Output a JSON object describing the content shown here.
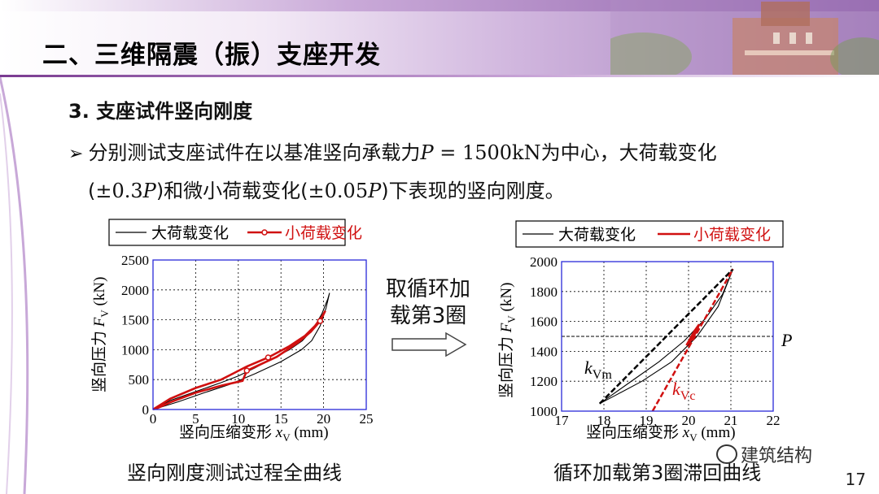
{
  "slide": {
    "title": "二、三维隔震（振）支座开发",
    "section_title": "3. 支座试件竖向刚度",
    "bullet_prefix": "分别测试支座试件在以基准竖向承载力",
    "bullet_math_P": "P",
    "bullet_math_eq": " = 1500kN",
    "bullet_mid": "为中心，大荷载变化",
    "line2_open": "(",
    "line2_pm1": "±0.3",
    "line2_P1": "P",
    "line2_mid": ")和微小荷载变化(",
    "line2_pm2": "±0.05",
    "line2_P2": "P",
    "line2_end": ")下表现的竖向刚度。",
    "middle_label_line1": "取循环加",
    "middle_label_line2": "载第3圈",
    "caption_left": "竖向刚度测试过程全曲线",
    "caption_right": "循环加载第3圈滞回曲线",
    "watermark": "建筑结构",
    "page_number": "17"
  },
  "colors": {
    "accent": "#7a3b91",
    "large_load": "#000000",
    "small_load": "#d01010",
    "plot_frame": "#2a2ad8"
  },
  "chart_data": [
    {
      "type": "line",
      "xlabel_main": "竖向压缩变形 ",
      "xlabel_var": "x",
      "xlabel_sub": "V",
      "xlabel_unit": " (mm)",
      "ylabel_main": "竖向压力 ",
      "ylabel_var": "F",
      "ylabel_sub": "V",
      "ylabel_unit": " (kN)",
      "xlim": [
        0,
        25
      ],
      "ylim": [
        0,
        2500
      ],
      "xticks": [
        "0",
        "5",
        "10",
        "15",
        "20",
        "25"
      ],
      "yticks": [
        "0",
        "500",
        "1000",
        "1500",
        "2000",
        "2500"
      ],
      "grid": true,
      "legend_position": "top",
      "series": [
        {
          "name": "大荷载变化",
          "color": "#000000",
          "loading": [
            [
              0,
              0
            ],
            [
              2,
              150
            ],
            [
              5,
              300
            ],
            [
              8,
              450
            ],
            [
              10,
              560
            ],
            [
              12,
              700
            ],
            [
              14,
              850
            ],
            [
              16,
              1000
            ],
            [
              17.5,
              1150
            ],
            [
              18.8,
              1350
            ],
            [
              19.8,
              1600
            ],
            [
              20.5,
              1850
            ],
            [
              20.7,
              1950
            ]
          ],
          "unloading": [
            [
              20.7,
              1950
            ],
            [
              20.3,
              1700
            ],
            [
              19.6,
              1400
            ],
            [
              18.6,
              1150
            ],
            [
              17.4,
              1000
            ],
            [
              15,
              800
            ],
            [
              12,
              600
            ],
            [
              9,
              420
            ],
            [
              6,
              280
            ],
            [
              3,
              130
            ],
            [
              0.5,
              20
            ]
          ]
        },
        {
          "name": "小荷载变化",
          "color": "#d01010",
          "marker": "circle",
          "loading": [
            [
              0,
              0
            ],
            [
              2,
              180
            ],
            [
              5,
              360
            ],
            [
              8,
              500
            ],
            [
              9.5,
              610
            ],
            [
              11,
              720
            ],
            [
              13.5,
              870
            ],
            [
              16,
              1060
            ],
            [
              17.8,
              1230
            ],
            [
              19,
              1400
            ],
            [
              19.8,
              1550
            ],
            [
              20.2,
              1650
            ]
          ],
          "unloading": [
            [
              20.2,
              1650
            ],
            [
              19.6,
              1480
            ],
            [
              18.5,
              1300
            ],
            [
              17,
              1120
            ],
            [
              14.5,
              880
            ],
            [
              11,
              650
            ],
            [
              10.5,
              480
            ],
            [
              8,
              400
            ],
            [
              5,
              280
            ],
            [
              2,
              120
            ],
            [
              0.3,
              10
            ]
          ]
        }
      ]
    },
    {
      "type": "line",
      "xlabel_main": "竖向压缩变形 ",
      "xlabel_var": "x",
      "xlabel_sub": "V",
      "xlabel_unit": " (mm)",
      "ylabel_main": "竖向压力 ",
      "ylabel_var": "F",
      "ylabel_sub": "V",
      "ylabel_unit": " (kN)",
      "xlim": [
        17,
        22
      ],
      "ylim": [
        1000,
        2000
      ],
      "xticks": [
        "17",
        "18",
        "19",
        "20",
        "21",
        "22"
      ],
      "yticks": [
        "1000",
        "1200",
        "1400",
        "1600",
        "1800",
        "2000"
      ],
      "grid": true,
      "legend_position": "top",
      "reference_line": {
        "y": 1500,
        "label": "P"
      },
      "k_vm_label": "k",
      "k_vm_sub": "Vm",
      "k_vc_label": "k",
      "k_vc_sub": "Vc",
      "series": [
        {
          "name": "大荷载变化",
          "color": "#000000",
          "loading": [
            [
              17.9,
              1050
            ],
            [
              18.6,
              1190
            ],
            [
              19.3,
              1330
            ],
            [
              19.9,
              1470
            ],
            [
              20.4,
              1620
            ],
            [
              20.8,
              1780
            ],
            [
              21.05,
              1950
            ]
          ],
          "unloading": [
            [
              21.05,
              1950
            ],
            [
              20.7,
              1700
            ],
            [
              20.2,
              1500
            ],
            [
              19.6,
              1330
            ],
            [
              18.9,
              1200
            ],
            [
              18.3,
              1110
            ],
            [
              17.9,
              1050
            ]
          ]
        },
        {
          "name": "小荷载变化",
          "color": "#d01010",
          "loading": [
            [
              19.95,
              1440
            ],
            [
              20.05,
              1490
            ],
            [
              20.15,
              1540
            ],
            [
              20.25,
              1580
            ]
          ],
          "unloading": [
            [
              20.25,
              1580
            ],
            [
              20.18,
              1530
            ],
            [
              20.05,
              1470
            ],
            [
              19.95,
              1440
            ]
          ]
        }
      ],
      "k_vm_line": [
        [
          17.9,
          1050
        ],
        [
          21.05,
          1950
        ]
      ],
      "k_vc_line": [
        [
          19.15,
          1000
        ],
        [
          21.05,
          1950
        ]
      ]
    }
  ]
}
